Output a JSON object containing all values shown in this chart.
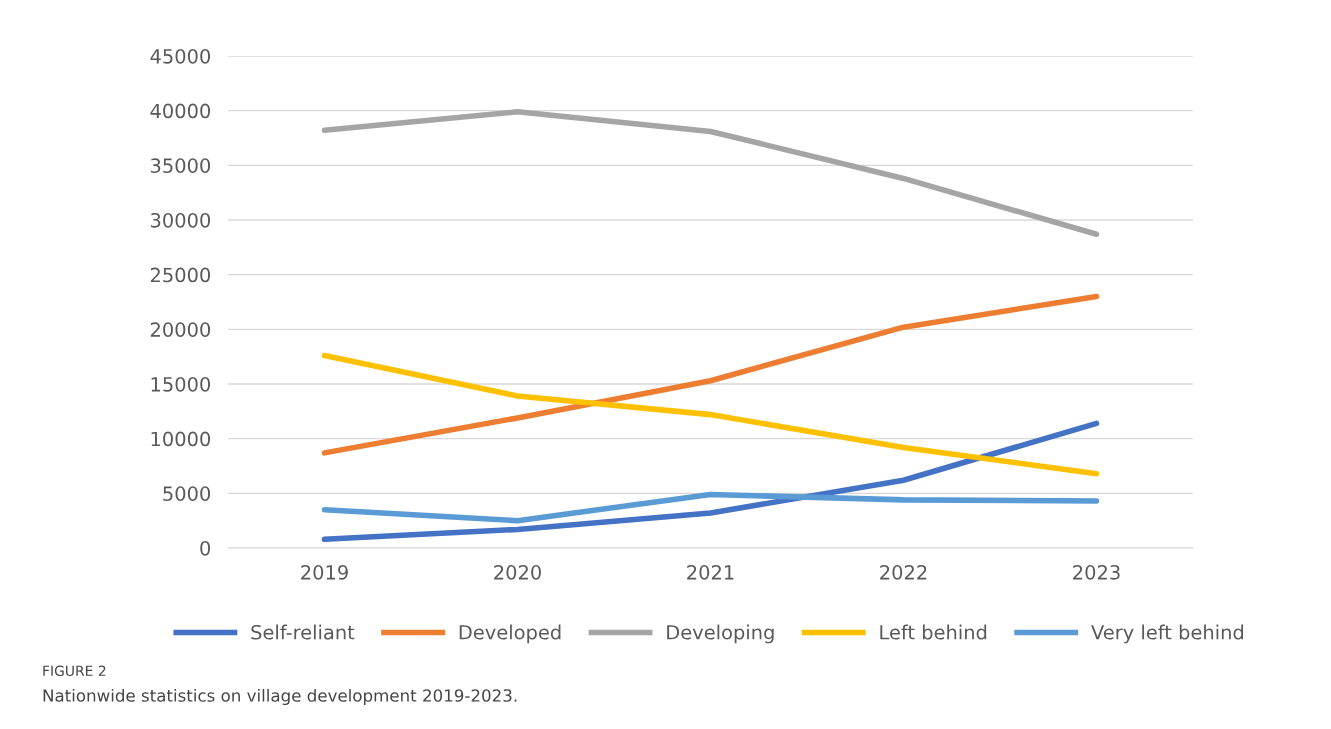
{
  "chart_data": {
    "type": "line",
    "categories": [
      "2019",
      "2020",
      "2021",
      "2022",
      "2023"
    ],
    "series": [
      {
        "name": "Self-reliant",
        "color": "#4472c4",
        "values": [
          800,
          1700,
          3200,
          6200,
          11400
        ]
      },
      {
        "name": "Developed",
        "color": "#ed7d31",
        "values": [
          8700,
          11900,
          15300,
          20200,
          23000
        ]
      },
      {
        "name": "Developing",
        "color": "#a5a5a5",
        "values": [
          38200,
          39900,
          38100,
          33800,
          28700
        ]
      },
      {
        "name": "Left behind",
        "color": "#ffc000",
        "values": [
          17600,
          13900,
          12200,
          9200,
          6800
        ]
      },
      {
        "name": "Very left behind",
        "color": "#5b9bd5",
        "values": [
          3500,
          2500,
          4900,
          4400,
          4300
        ]
      }
    ],
    "ylim": [
      0,
      45000
    ],
    "yticks": [
      0,
      5000,
      10000,
      15000,
      20000,
      25000,
      30000,
      35000,
      40000,
      45000
    ],
    "grid": "y",
    "legend": "bottom",
    "marker": "none",
    "line_style": "solid",
    "annotations": [
      "FIGURE 2",
      "Nationwide statistics on village development 2019-2023."
    ]
  }
}
